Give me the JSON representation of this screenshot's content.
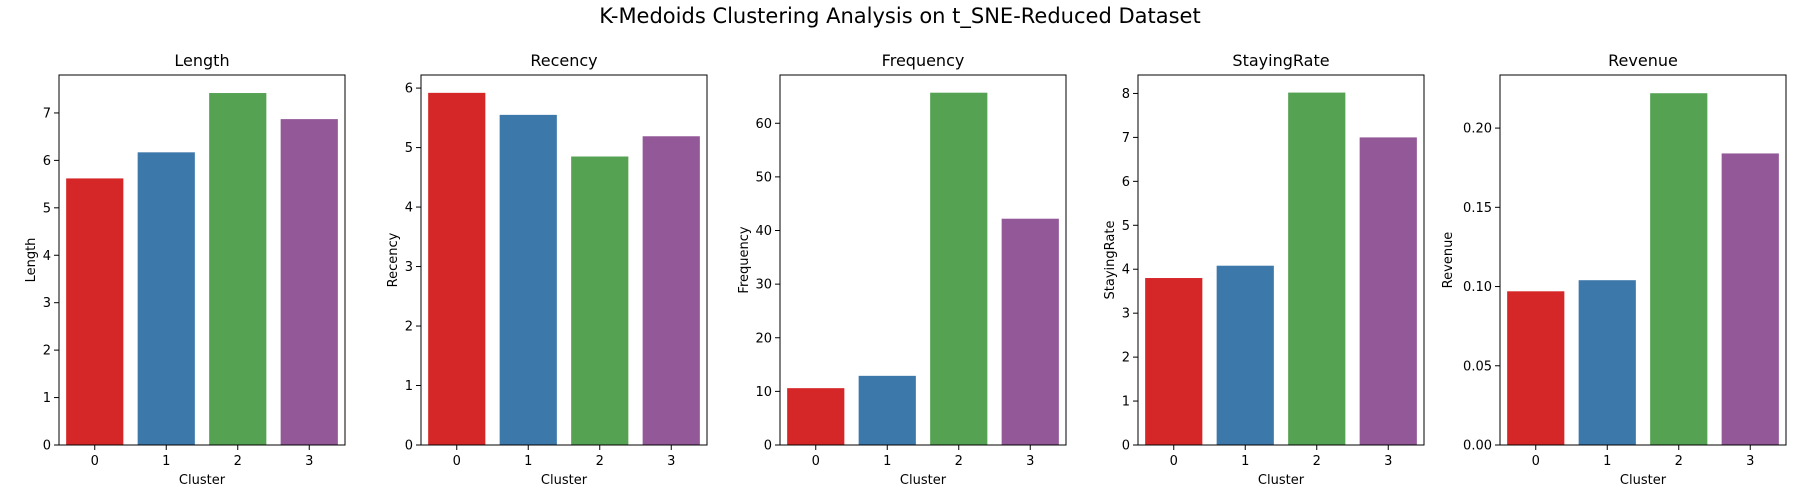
{
  "figure": {
    "suptitle": "K-Medoids Clustering Analysis on t_SNE-Reduced Dataset",
    "palette": [
      "#d62728",
      "#3d78ab",
      "#55a253",
      "#925897"
    ]
  },
  "chart_data": [
    {
      "type": "bar",
      "title": "Length",
      "xlabel": "Cluster",
      "ylabel": "Length",
      "categories": [
        "0",
        "1",
        "2",
        "3"
      ],
      "values": [
        5.62,
        6.17,
        7.42,
        6.87
      ],
      "ylim": [
        0,
        7.8
      ],
      "yticks": [
        0,
        1,
        2,
        3,
        4,
        5,
        6,
        7
      ],
      "ytick_labels": [
        "0",
        "1",
        "2",
        "3",
        "4",
        "5",
        "6",
        "7"
      ],
      "grid": false
    },
    {
      "type": "bar",
      "title": "Recency",
      "xlabel": "Cluster",
      "ylabel": "Recency",
      "categories": [
        "0",
        "1",
        "2",
        "3"
      ],
      "values": [
        5.92,
        5.55,
        4.85,
        5.19
      ],
      "ylim": [
        0,
        6.22
      ],
      "yticks": [
        0,
        1,
        2,
        3,
        4,
        5,
        6
      ],
      "ytick_labels": [
        "0",
        "1",
        "2",
        "3",
        "4",
        "5",
        "6"
      ],
      "grid": false
    },
    {
      "type": "bar",
      "title": "Frequency",
      "xlabel": "Cluster",
      "ylabel": "Frequency",
      "categories": [
        "0",
        "1",
        "2",
        "3"
      ],
      "values": [
        10.6,
        12.9,
        65.7,
        42.2
      ],
      "ylim": [
        0,
        69
      ],
      "yticks": [
        0,
        10,
        20,
        30,
        40,
        50,
        60
      ],
      "ytick_labels": [
        "0",
        "10",
        "20",
        "30",
        "40",
        "50",
        "60"
      ],
      "grid": false
    },
    {
      "type": "bar",
      "title": "StayingRate",
      "xlabel": "Cluster",
      "ylabel": "StayingRate",
      "categories": [
        "0",
        "1",
        "2",
        "3"
      ],
      "values": [
        3.8,
        4.08,
        8.02,
        7.0
      ],
      "ylim": [
        0,
        8.42
      ],
      "yticks": [
        0,
        1,
        2,
        3,
        4,
        5,
        6,
        7,
        8
      ],
      "ytick_labels": [
        "0",
        "1",
        "2",
        "3",
        "4",
        "5",
        "6",
        "7",
        "8"
      ],
      "grid": false
    },
    {
      "type": "bar",
      "title": "Revenue",
      "xlabel": "Cluster",
      "ylabel": "Revenue",
      "categories": [
        "0",
        "1",
        "2",
        "3"
      ],
      "values": [
        0.097,
        0.104,
        0.222,
        0.184
      ],
      "ylim": [
        0,
        0.2335
      ],
      "yticks": [
        0,
        0.05,
        0.1,
        0.15,
        0.2
      ],
      "ytick_labels": [
        "0.00",
        "0.05",
        "0.10",
        "0.15",
        "0.20"
      ],
      "grid": false
    }
  ]
}
